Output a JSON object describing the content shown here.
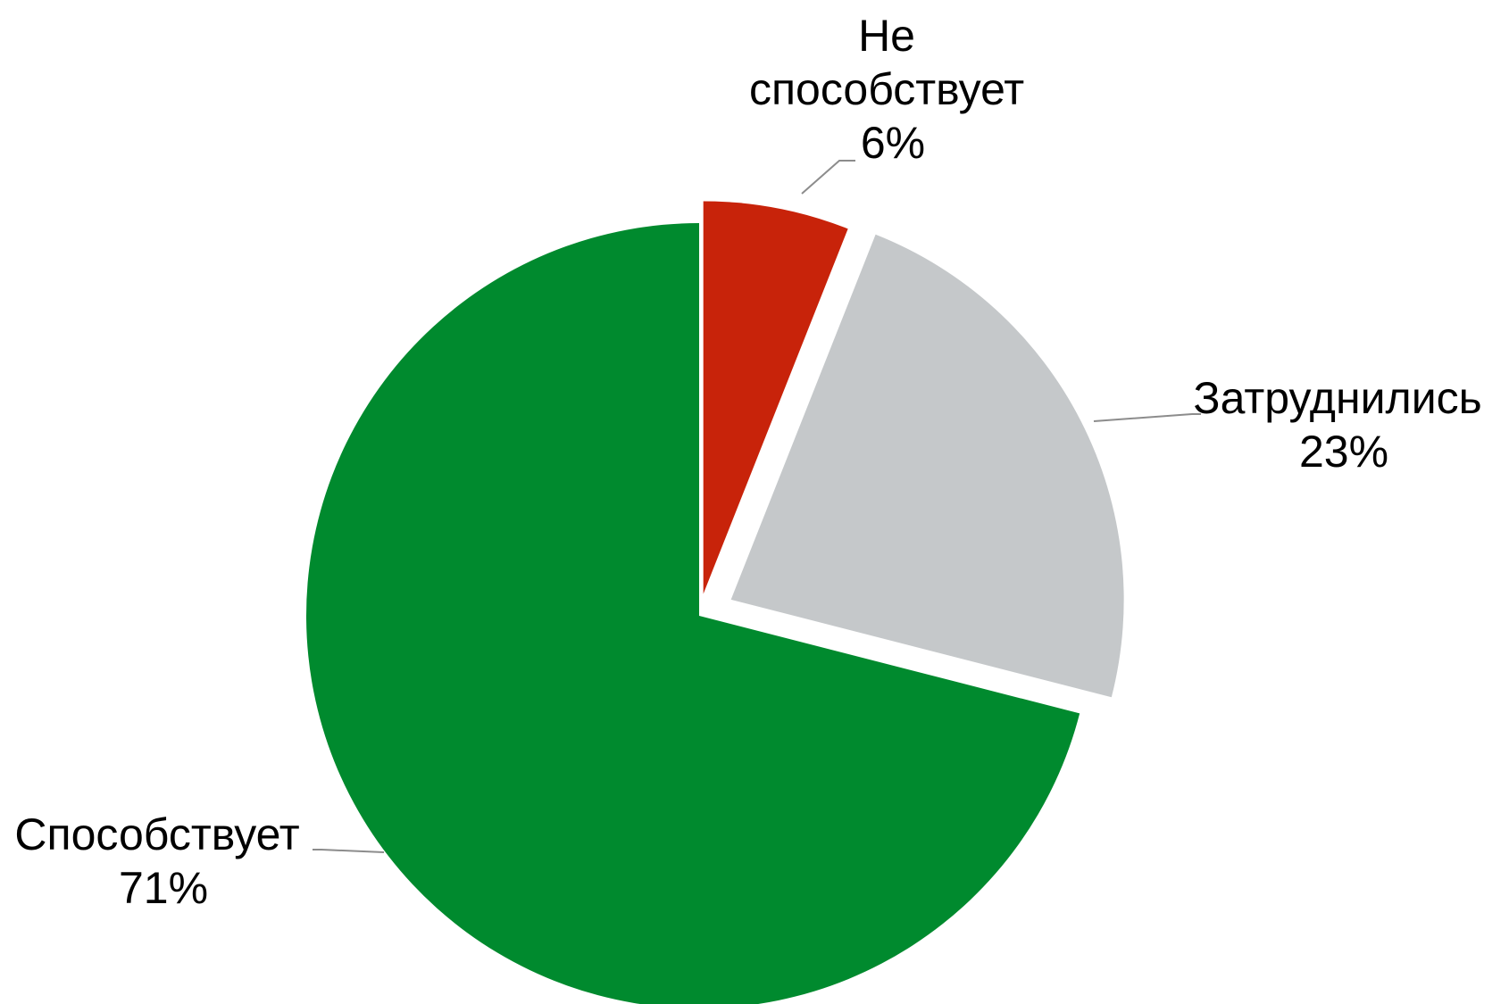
{
  "chart_data": {
    "type": "pie",
    "title": "",
    "start_angle_deg": 0,
    "direction": "clockwise",
    "exploded": true,
    "slices": [
      {
        "label": "Не способствует",
        "label_lines": [
          "Не",
          "способствует"
        ],
        "percent_label": "6%",
        "value": 6,
        "color": "#c8230a"
      },
      {
        "label": "Затруднились",
        "label_lines": [
          "Затруднились"
        ],
        "percent_label": "23%",
        "value": 23,
        "color": "#c5c8ca"
      },
      {
        "label": "Способствует",
        "label_lines": [
          "Способствует"
        ],
        "percent_label": "71%",
        "value": 71,
        "color": "#008a2e"
      }
    ]
  }
}
